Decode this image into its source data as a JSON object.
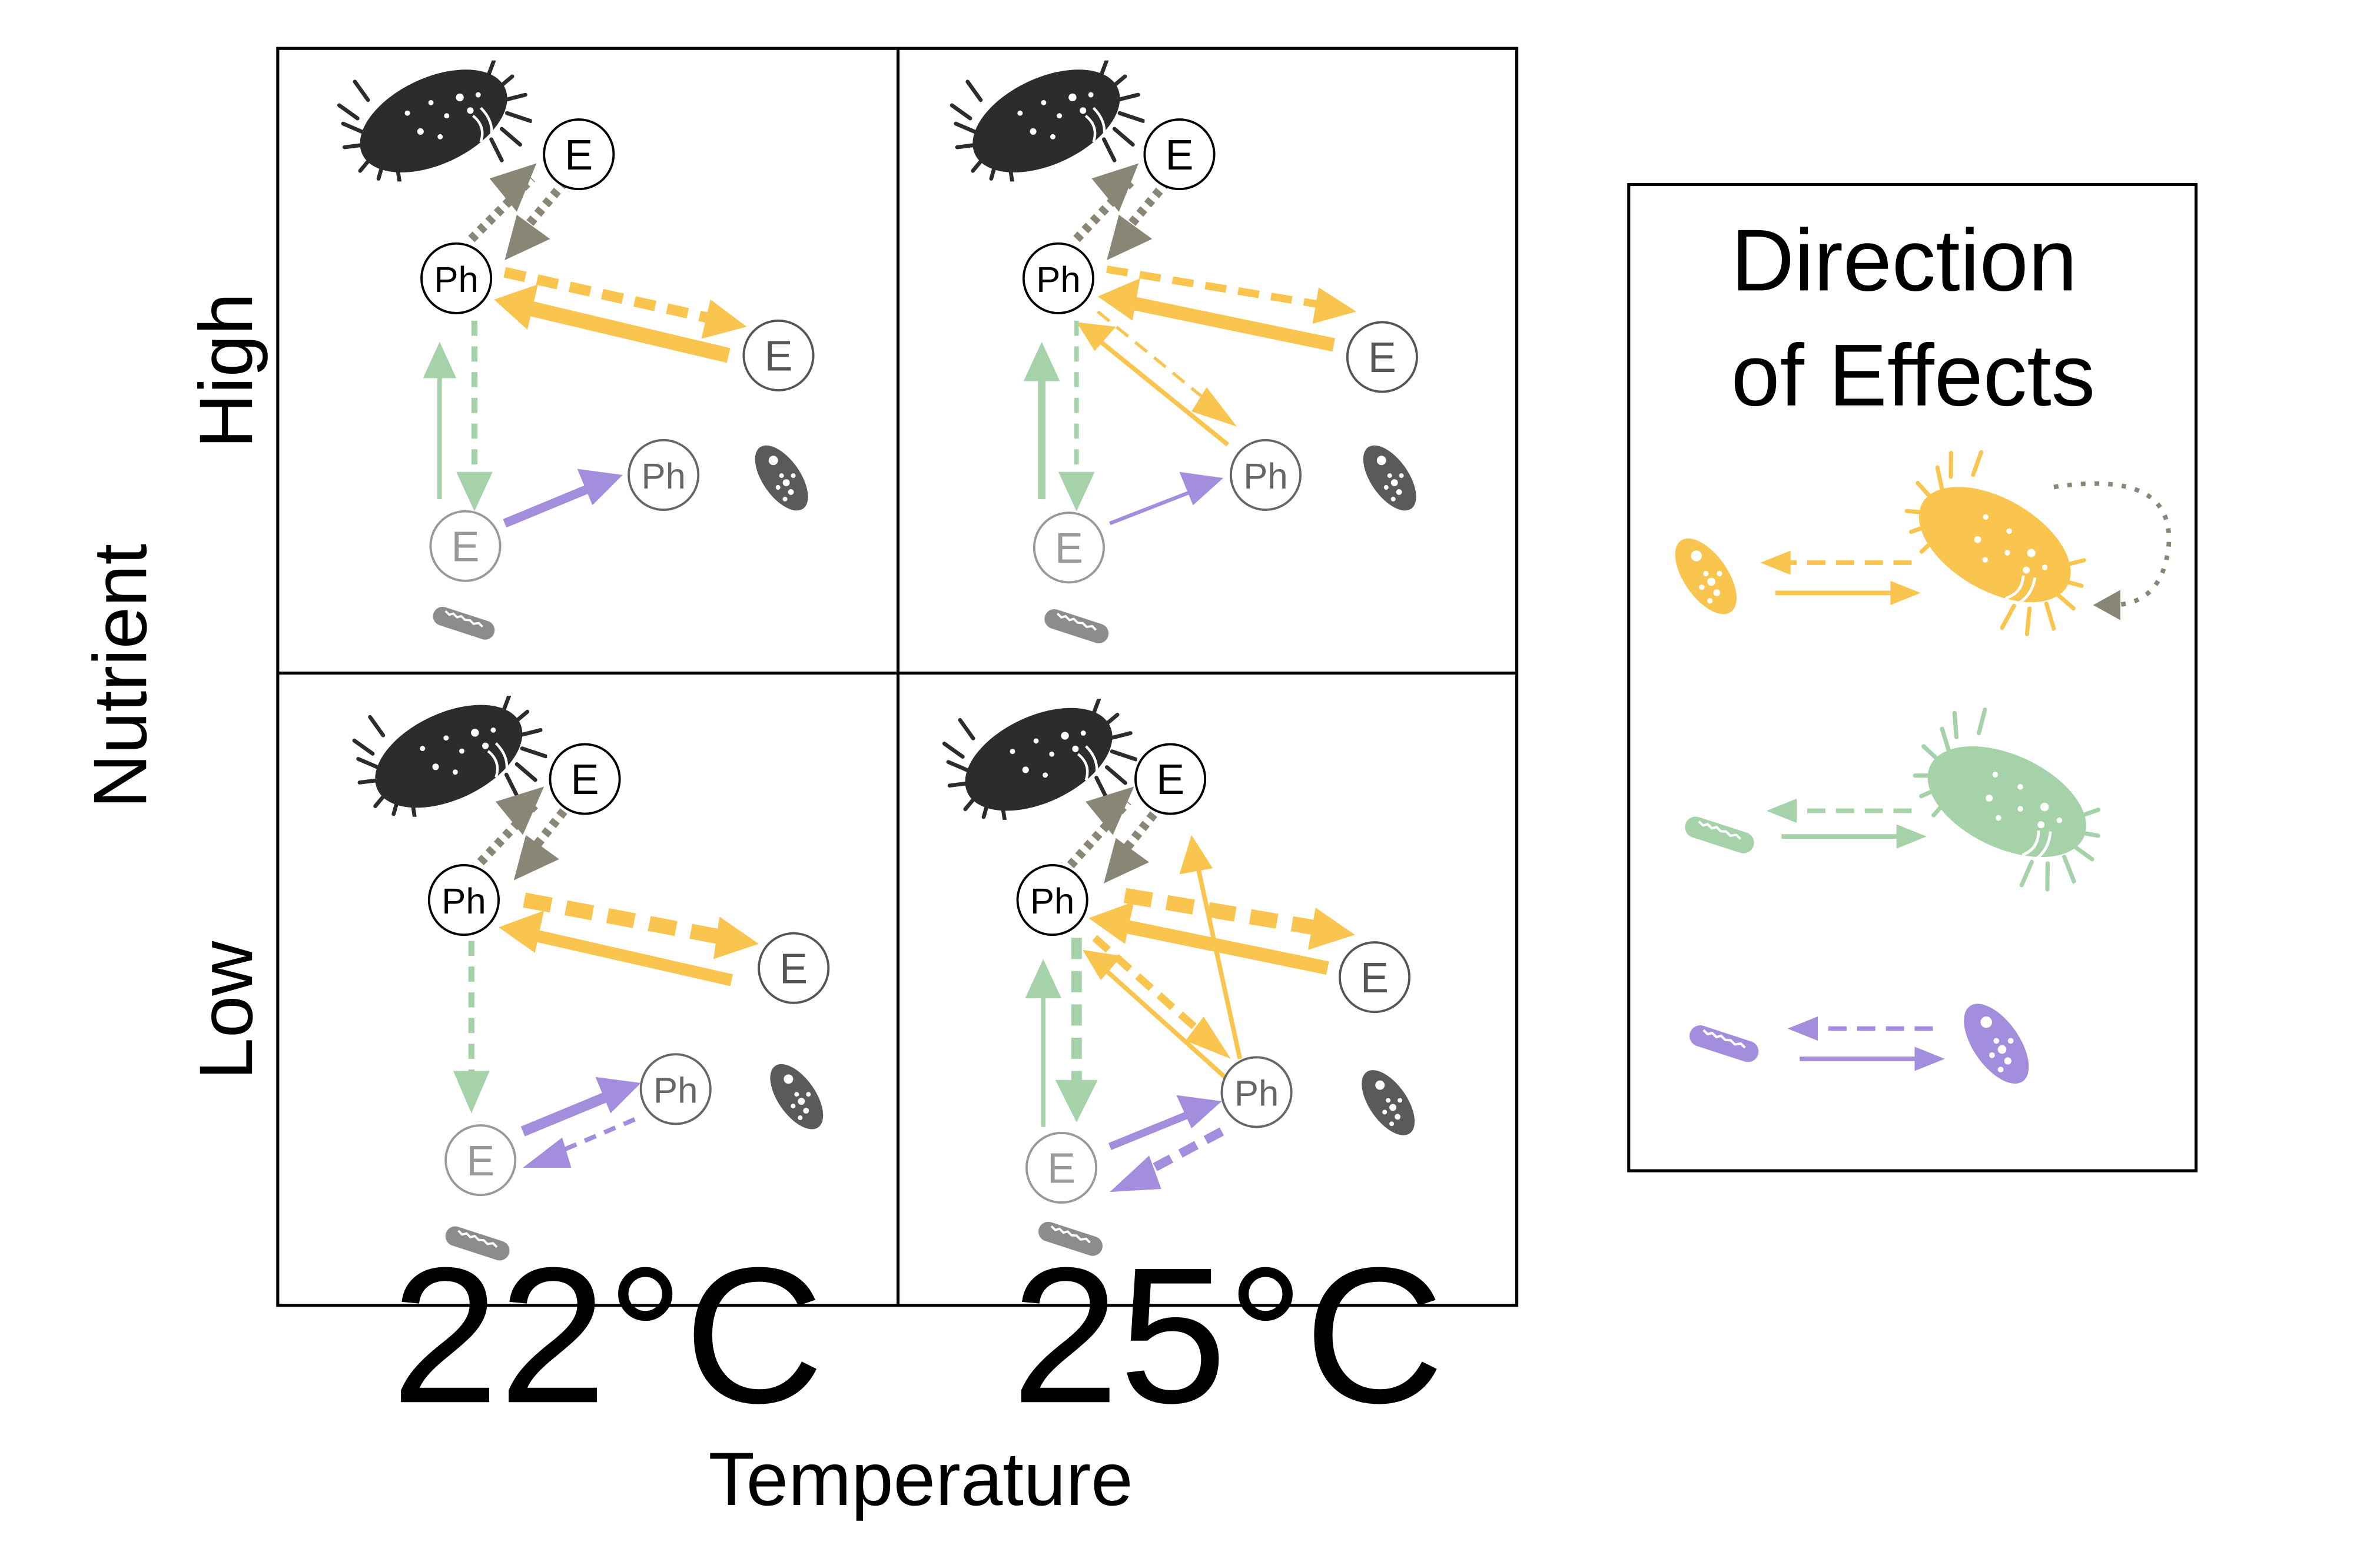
{
  "axes": {
    "x_title": "Temperature",
    "y_title": "Nutrient",
    "x_ticks": [
      "22°C",
      "25°C"
    ],
    "y_ticks": [
      "High",
      "Low"
    ]
  },
  "nodes": {
    "E": "E",
    "Ph": "Ph"
  },
  "legend": {
    "title_line1": "Direction",
    "title_line2": "of Effects"
  },
  "colors": {
    "yellow": "#F9C54F",
    "green": "#A5D2A8",
    "purple": "#A28EDD",
    "taupe": "#8A8676",
    "dark": "#2C2C2C",
    "mid": "#5A5A5A",
    "light": "#8C8C8C"
  }
}
